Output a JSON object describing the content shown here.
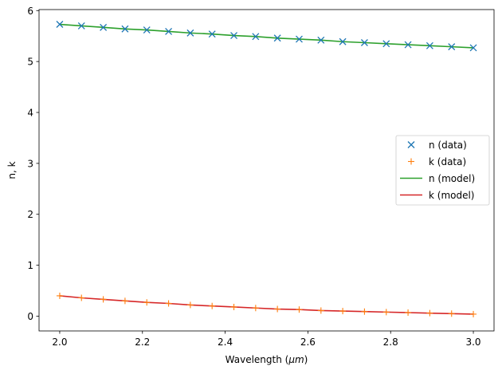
{
  "chart_data": {
    "type": "line",
    "xlabel_prefix": "Wavelength (",
    "xlabel_unit": "μm",
    "xlabel_suffix": ")",
    "ylabel": "n, k",
    "xlim": [
      1.95,
      3.05
    ],
    "ylim": [
      -0.29,
      6.02
    ],
    "xticks": [
      2.0,
      2.2,
      2.4,
      2.6,
      2.8,
      3.0
    ],
    "xtick_labels": [
      "2.0",
      "2.2",
      "2.4",
      "2.6",
      "2.8",
      "3.0"
    ],
    "yticks": [
      0,
      1,
      2,
      3,
      4,
      5,
      6
    ],
    "ytick_labels": [
      "0",
      "1",
      "2",
      "3",
      "4",
      "5",
      "6"
    ],
    "grid": false,
    "legend_position": "center-right",
    "x": [
      2.0,
      2.0526,
      2.1053,
      2.1579,
      2.2105,
      2.2632,
      2.3158,
      2.3684,
      2.4211,
      2.4737,
      2.5263,
      2.5789,
      2.6316,
      2.6842,
      2.7368,
      2.7895,
      2.8421,
      2.8947,
      2.9474,
      3.0
    ],
    "series": [
      {
        "name": "n (data)",
        "style": "marker",
        "marker": "x",
        "color": "#1f77b4",
        "values": [
          5.73,
          5.7,
          5.67,
          5.64,
          5.62,
          5.59,
          5.56,
          5.54,
          5.51,
          5.49,
          5.46,
          5.44,
          5.42,
          5.39,
          5.37,
          5.35,
          5.33,
          5.31,
          5.29,
          5.27
        ]
      },
      {
        "name": "k (data)",
        "style": "marker",
        "marker": "+",
        "color": "#ff7f0e",
        "values": [
          0.4,
          0.36,
          0.33,
          0.3,
          0.27,
          0.25,
          0.22,
          0.2,
          0.18,
          0.16,
          0.14,
          0.13,
          0.11,
          0.1,
          0.09,
          0.08,
          0.07,
          0.06,
          0.05,
          0.04
        ]
      },
      {
        "name": "n (model)",
        "style": "line",
        "color": "#2ca02c",
        "values": [
          5.73,
          5.7,
          5.67,
          5.64,
          5.62,
          5.59,
          5.56,
          5.54,
          5.51,
          5.49,
          5.46,
          5.44,
          5.42,
          5.39,
          5.37,
          5.35,
          5.33,
          5.31,
          5.29,
          5.27
        ]
      },
      {
        "name": "k (model)",
        "style": "line",
        "color": "#d62728",
        "values": [
          0.4,
          0.36,
          0.33,
          0.3,
          0.27,
          0.25,
          0.22,
          0.2,
          0.18,
          0.16,
          0.14,
          0.13,
          0.11,
          0.1,
          0.09,
          0.08,
          0.07,
          0.06,
          0.05,
          0.04
        ]
      }
    ]
  }
}
